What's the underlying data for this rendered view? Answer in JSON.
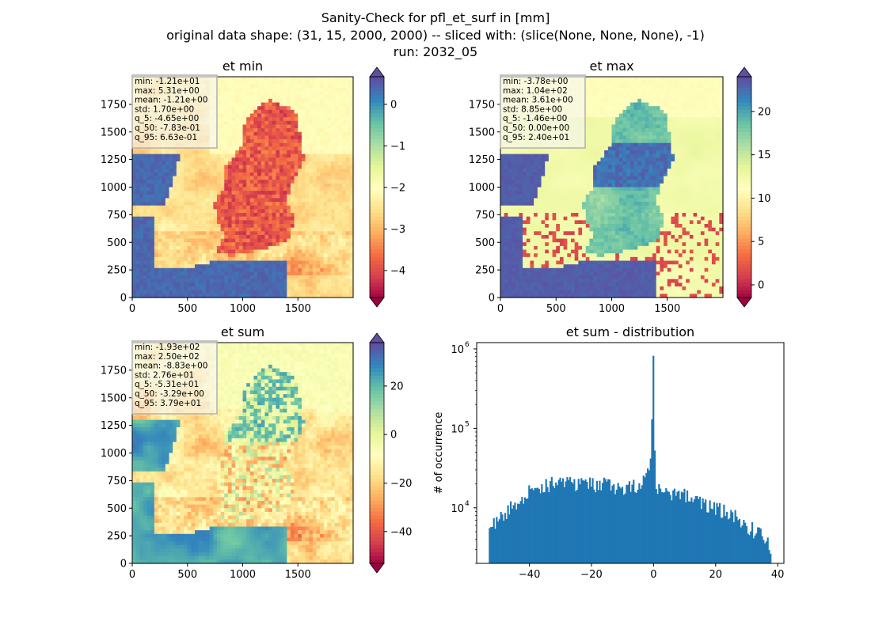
{
  "figure": {
    "title_lines": [
      "Sanity-Check for pfl_et_surf in [mm]",
      "original data shape: (31, 15, 2000, 2000) -- sliced with: (slice(None, None, None), -1)",
      "run: 2032_05"
    ]
  },
  "chart_data": [
    {
      "type": "heatmap",
      "title": "et min",
      "xlim": [
        0,
        2000
      ],
      "ylim": [
        0,
        2000
      ],
      "x_ticks": [
        0,
        500,
        1000,
        1500
      ],
      "y_ticks": [
        0,
        250,
        500,
        750,
        1000,
        1250,
        1500,
        1750
      ],
      "colormap": "Spectral",
      "colorbar": {
        "range": [
          -4.65,
          0.663
        ],
        "ticks": [
          0,
          -1,
          -2,
          -3,
          -4
        ],
        "tick_labels": [
          "0",
          "−1",
          "−2",
          "−3",
          "−4"
        ],
        "extend": "both"
      },
      "stats": [
        "min: -1.21e+01",
        "max: 5.31e+00",
        "mean: -1.21e+00",
        "std: 1.70e+00",
        "q_5: -4.65e+00",
        "q_50: -7.83e-01",
        "q_95: 6.63e-01"
      ]
    },
    {
      "type": "heatmap",
      "title": "et max",
      "xlim": [
        0,
        2000
      ],
      "ylim": [
        0,
        2000
      ],
      "x_ticks": [
        0,
        500,
        1000,
        1500
      ],
      "y_ticks": [
        0,
        250,
        500,
        750,
        1000,
        1250,
        1500,
        1750
      ],
      "colormap": "Spectral",
      "colorbar": {
        "range": [
          -1.46,
          24.0
        ],
        "ticks": [
          0,
          5,
          10,
          15,
          20
        ],
        "tick_labels": [
          "0",
          "5",
          "10",
          "15",
          "20"
        ],
        "extend": "both"
      },
      "stats": [
        "min: -3.78e+00",
        "max: 1.04e+02",
        "mean: 3.61e+00",
        "std: 8.85e+00",
        "q_5: -1.46e+00",
        "q_50: 0.00e+00",
        "q_95: 2.40e+01"
      ]
    },
    {
      "type": "heatmap",
      "title": "et sum",
      "xlim": [
        0,
        2000
      ],
      "ylim": [
        0,
        2000
      ],
      "x_ticks": [
        0,
        500,
        1000,
        1500
      ],
      "y_ticks": [
        0,
        250,
        500,
        750,
        1000,
        1250,
        1500,
        1750
      ],
      "colormap": "Spectral",
      "colorbar": {
        "range": [
          -53.1,
          37.9
        ],
        "ticks": [
          20,
          0,
          -20,
          -40
        ],
        "tick_labels": [
          "20",
          "0",
          "−20",
          "−40"
        ],
        "extend": "both"
      },
      "stats": [
        "min: -1.93e+02",
        "max: 2.50e+02",
        "mean: -8.83e+00",
        "std: 2.76e+01",
        "q_5: -5.31e+01",
        "q_50: -3.29e+00",
        "q_95: 3.79e+01"
      ]
    },
    {
      "type": "bar",
      "title": "et sum - distribution",
      "ylabel": "# of occurrence",
      "yscale": "log",
      "xlim": [
        -57,
        42
      ],
      "ylim": [
        2000,
        1200000
      ],
      "x_ticks": [
        -40,
        -20,
        0,
        20,
        40
      ],
      "x_tick_labels": [
        "−40",
        "−20",
        "0",
        "20",
        "40"
      ],
      "y_ticks": [
        10000,
        100000,
        1000000
      ],
      "y_tick_labels": [
        "10",
        "10",
        "10"
      ],
      "y_tick_exponents": [
        "4",
        "5",
        "6"
      ],
      "color": "#1f77b4",
      "bin_edges_range": [
        -53.1,
        37.9
      ],
      "bins": 200,
      "envelope": [
        [
          -53.1,
          5200
        ],
        [
          -50,
          7500
        ],
        [
          -45,
          11000
        ],
        [
          -40,
          16000
        ],
        [
          -35,
          20000
        ],
        [
          -30,
          20000
        ],
        [
          -25,
          20000
        ],
        [
          -20,
          20000
        ],
        [
          -15,
          20000
        ],
        [
          -10,
          18000
        ],
        [
          -5,
          20000
        ],
        [
          -2,
          25000
        ],
        [
          -1,
          35000
        ],
        [
          0,
          820000
        ],
        [
          0.5,
          18000
        ],
        [
          3,
          16000
        ],
        [
          10,
          15000
        ],
        [
          15,
          12000
        ],
        [
          20,
          10000
        ],
        [
          25,
          8500
        ],
        [
          30,
          6000
        ],
        [
          35,
          4500
        ],
        [
          37.9,
          3000
        ]
      ]
    }
  ]
}
